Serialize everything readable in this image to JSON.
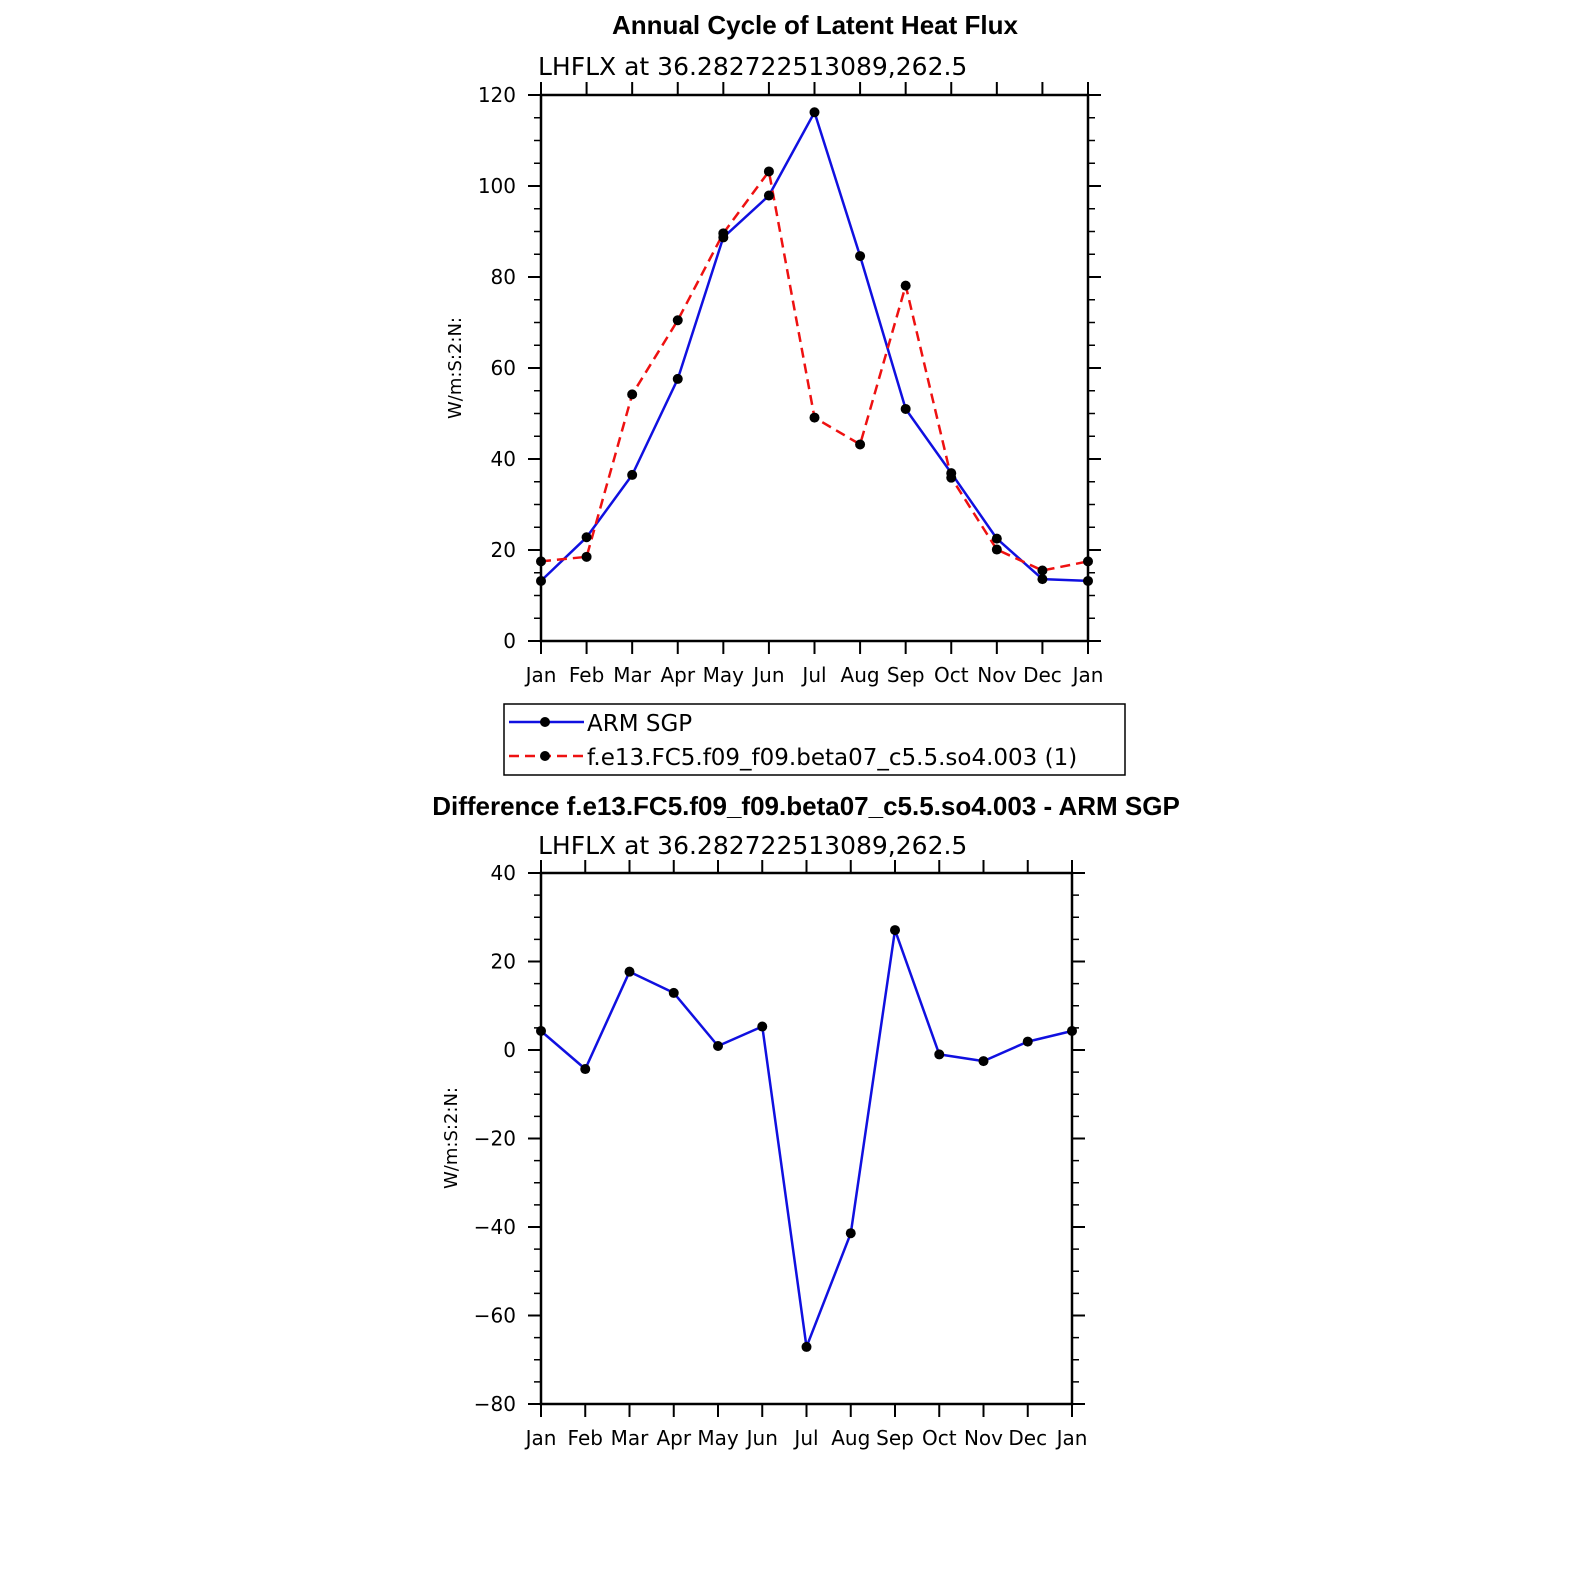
{
  "colors": {
    "obs": "#1010e0",
    "model": "#ee1111",
    "diff": "#1010e0",
    "marker": "#000000",
    "axis": "#000000"
  },
  "chart_data": [
    {
      "type": "line",
      "title": "Annual Cycle of Latent Heat Flux",
      "subtitle": "LHFLX at 36.282722513089,262.5",
      "ylabel": "W/m:S:2:N:",
      "xlabel": "",
      "categories": [
        "Jan",
        "Feb",
        "Mar",
        "Apr",
        "May",
        "Jun",
        "Jul",
        "Aug",
        "Sep",
        "Oct",
        "Nov",
        "Dec",
        "Jan"
      ],
      "ylim": [
        0,
        120
      ],
      "yticks": [
        0,
        20,
        40,
        60,
        80,
        100,
        120
      ],
      "grid": false,
      "legend_position": "bottom",
      "series": [
        {
          "name": "ARM SGP",
          "style": "solid",
          "color_key": "obs",
          "values": [
            13.2,
            22.8,
            36.5,
            57.6,
            88.7,
            97.9,
            116.2,
            84.6,
            51.0,
            36.9,
            22.5,
            13.6,
            13.2
          ]
        },
        {
          "name": "f.e13.FC5.f09_f09.beta07_c5.5.so4.003 (1)",
          "style": "dashed",
          "color_key": "model",
          "values": [
            17.5,
            18.5,
            54.2,
            70.5,
            89.6,
            103.2,
            49.1,
            43.2,
            78.1,
            35.9,
            20.1,
            15.5,
            17.5
          ]
        }
      ]
    },
    {
      "type": "line",
      "title": "Difference f.e13.FC5.f09_f09.beta07_c5.5.so4.003 - ARM SGP",
      "subtitle": "LHFLX at 36.282722513089,262.5",
      "ylabel": "W/m:S:2:N:",
      "xlabel": "",
      "categories": [
        "Jan",
        "Feb",
        "Mar",
        "Apr",
        "May",
        "Jun",
        "Jul",
        "Aug",
        "Sep",
        "Oct",
        "Nov",
        "Dec",
        "Jan"
      ],
      "ylim": [
        -80,
        40
      ],
      "yticks": [
        -80,
        -60,
        -40,
        -20,
        0,
        20,
        40
      ],
      "grid": false,
      "series": [
        {
          "style": "solid",
          "color_key": "diff",
          "values": [
            4.3,
            -4.3,
            17.7,
            12.9,
            0.9,
            5.3,
            -67.1,
            -41.4,
            27.1,
            -1.0,
            -2.5,
            1.9,
            4.3
          ]
        }
      ]
    }
  ]
}
